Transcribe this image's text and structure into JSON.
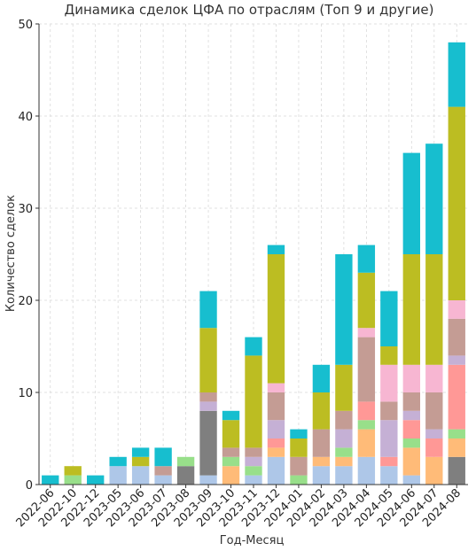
{
  "chart_data": {
    "type": "bar",
    "stacked": true,
    "title": "Динамика сделок ЦФА по отраслям (Топ 9 и другие)",
    "xlabel": "Год-Месяц",
    "ylabel": "Количество сделок",
    "ylim": [
      0,
      50
    ],
    "yticks": [
      0,
      10,
      20,
      30,
      40,
      50
    ],
    "grid": true,
    "categories": [
      "2022-06",
      "2022-10",
      "2022-12",
      "2023-05",
      "2023-06",
      "2023-07",
      "2023-08",
      "2023-09",
      "2023-10",
      "2023-11",
      "2023-12",
      "2024-01",
      "2024-02",
      "2024-03",
      "2024-04",
      "2024-05",
      "2024-06",
      "2024-07",
      "2024-08"
    ],
    "series": [
      {
        "color": "#aec7e8",
        "values": [
          0,
          0,
          0,
          2,
          2,
          1,
          0,
          1,
          0,
          1,
          3,
          0,
          2,
          2,
          3,
          2,
          1,
          0,
          0
        ]
      },
      {
        "color": "#7f7f7f",
        "values": [
          0,
          0,
          0,
          0,
          0,
          0,
          2,
          7,
          0,
          0,
          0,
          0,
          0,
          0,
          0,
          0,
          0,
          0,
          3
        ]
      },
      {
        "color": "#ffbb78",
        "values": [
          0,
          0,
          0,
          0,
          0,
          0,
          0,
          0,
          2,
          0,
          1,
          0,
          1,
          1,
          3,
          0,
          3,
          3,
          2
        ]
      },
      {
        "color": "#98df8a",
        "values": [
          0,
          1,
          0,
          0,
          0,
          0,
          1,
          0,
          1,
          1,
          0,
          1,
          0,
          1,
          1,
          0,
          1,
          0,
          1
        ]
      },
      {
        "color": "#ff9896",
        "values": [
          0,
          0,
          0,
          0,
          0,
          0,
          0,
          0,
          0,
          0,
          1,
          0,
          0,
          0,
          2,
          1,
          2,
          2,
          7
        ]
      },
      {
        "color": "#c5b0d5",
        "values": [
          0,
          0,
          0,
          0,
          0,
          0,
          0,
          1,
          0,
          1,
          2,
          0,
          0,
          2,
          0,
          4,
          1,
          1,
          1
        ]
      },
      {
        "color": "#c49c94",
        "values": [
          0,
          0,
          0,
          0,
          0,
          1,
          0,
          1,
          1,
          1,
          3,
          2,
          3,
          2,
          7,
          2,
          2,
          4,
          4
        ]
      },
      {
        "color": "#f7b6d2",
        "values": [
          0,
          0,
          0,
          0,
          0,
          0,
          0,
          0,
          0,
          0,
          1,
          0,
          0,
          0,
          1,
          4,
          3,
          3,
          2
        ]
      },
      {
        "color": "#bcbd22",
        "values": [
          0,
          1,
          0,
          0,
          1,
          0,
          0,
          7,
          3,
          10,
          14,
          2,
          4,
          5,
          6,
          2,
          12,
          12,
          21
        ]
      },
      {
        "color": "#17becf",
        "values": [
          1,
          0,
          1,
          1,
          1,
          2,
          0,
          4,
          1,
          2,
          1,
          1,
          3,
          12,
          3,
          6,
          11,
          12,
          7
        ]
      }
    ]
  }
}
